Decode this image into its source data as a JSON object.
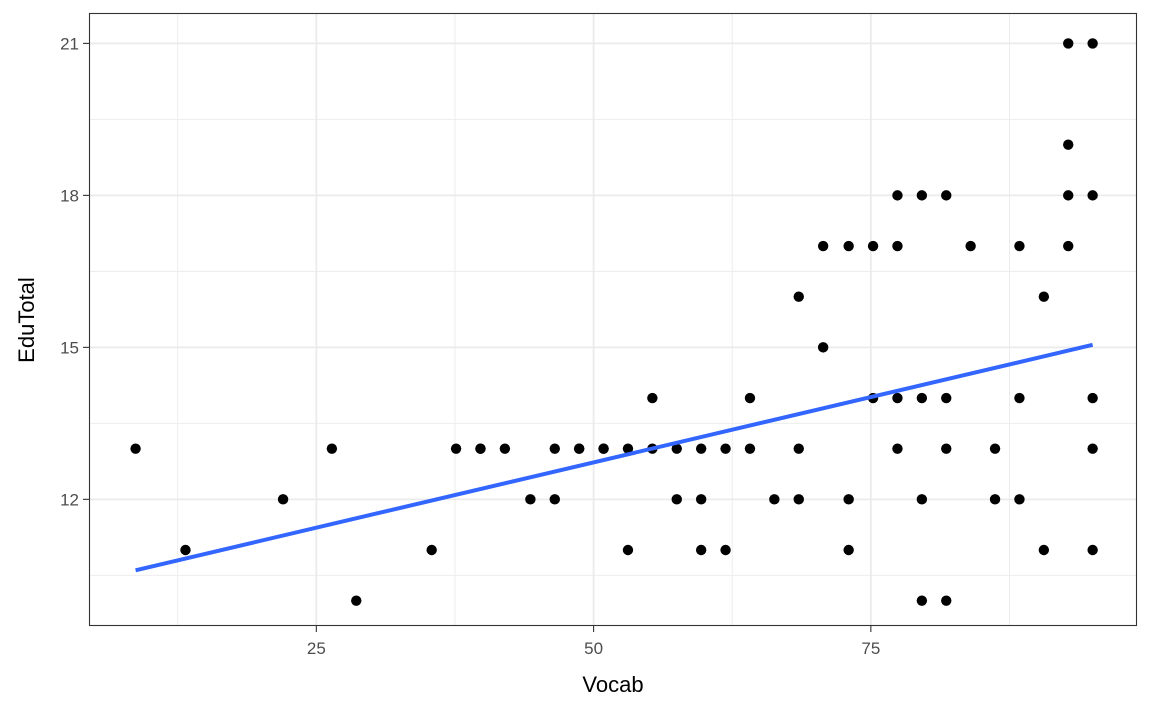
{
  "chart_data": {
    "type": "scatter",
    "xlabel": "Vocab",
    "ylabel": "EduTotal",
    "xlim": [
      4.5,
      99
    ],
    "ylim": [
      9.5,
      21.6
    ],
    "x_ticks": [
      25,
      50,
      75
    ],
    "x_tick_labels": [
      "25",
      "50",
      "75"
    ],
    "x_minor_ticks": [
      12.5,
      37.5,
      62.5,
      87.5
    ],
    "y_ticks": [
      12,
      15,
      18,
      21
    ],
    "y_tick_labels": [
      "12",
      "15",
      "18",
      "21"
    ],
    "y_minor_ticks": [
      10.5,
      13.5,
      16.5,
      19.5
    ],
    "grid": true,
    "legend": "none",
    "colors": {
      "points": "#000000",
      "trend_line": "#3366FF",
      "grid": "#ebebeb",
      "panel_border": "#333333"
    },
    "series": [
      {
        "x": [
          8.7,
          13.2,
          22.0,
          26.4,
          28.6,
          35.4,
          37.6,
          39.8,
          39.8,
          42.0,
          44.3,
          46.5,
          46.5,
          48.7,
          48.7,
          50.9,
          50.9,
          53.1,
          53.1,
          55.3,
          55.3,
          57.5,
          57.5,
          59.7,
          59.7,
          59.7,
          61.9,
          61.9,
          64.1,
          64.1,
          66.3,
          68.5,
          68.5,
          68.5,
          70.7,
          70.7,
          73.0,
          73.0,
          73.0,
          75.2,
          75.2,
          77.4,
          77.4,
          77.4,
          77.4,
          79.6,
          79.6,
          79.6,
          79.6,
          81.8,
          81.8,
          81.8,
          81.8,
          84.0,
          86.2,
          86.2,
          88.4,
          88.4,
          88.4,
          90.6,
          90.6,
          92.8,
          92.8,
          92.8,
          92.8,
          95.0,
          95.0,
          95.0,
          95.0,
          95.0
        ],
        "y": [
          13,
          11,
          12,
          13,
          10,
          11,
          13,
          13,
          13,
          13,
          12,
          13,
          12,
          13,
          13,
          13,
          13,
          13,
          11,
          14,
          13,
          13,
          12,
          13,
          12,
          11,
          13,
          11,
          14,
          13,
          12,
          16,
          13,
          12,
          17,
          15,
          17,
          12,
          11,
          17,
          14,
          18,
          17,
          14,
          13,
          18,
          14,
          12,
          10,
          18,
          14,
          13,
          10,
          17,
          13,
          12,
          17,
          14,
          12,
          16,
          11,
          21,
          19,
          18,
          17,
          21,
          18,
          14,
          13,
          11
        ]
      }
    ],
    "trend_line": {
      "method": "linear",
      "x": [
        8.7,
        95.0
      ],
      "y": [
        10.6,
        15.05
      ]
    }
  }
}
